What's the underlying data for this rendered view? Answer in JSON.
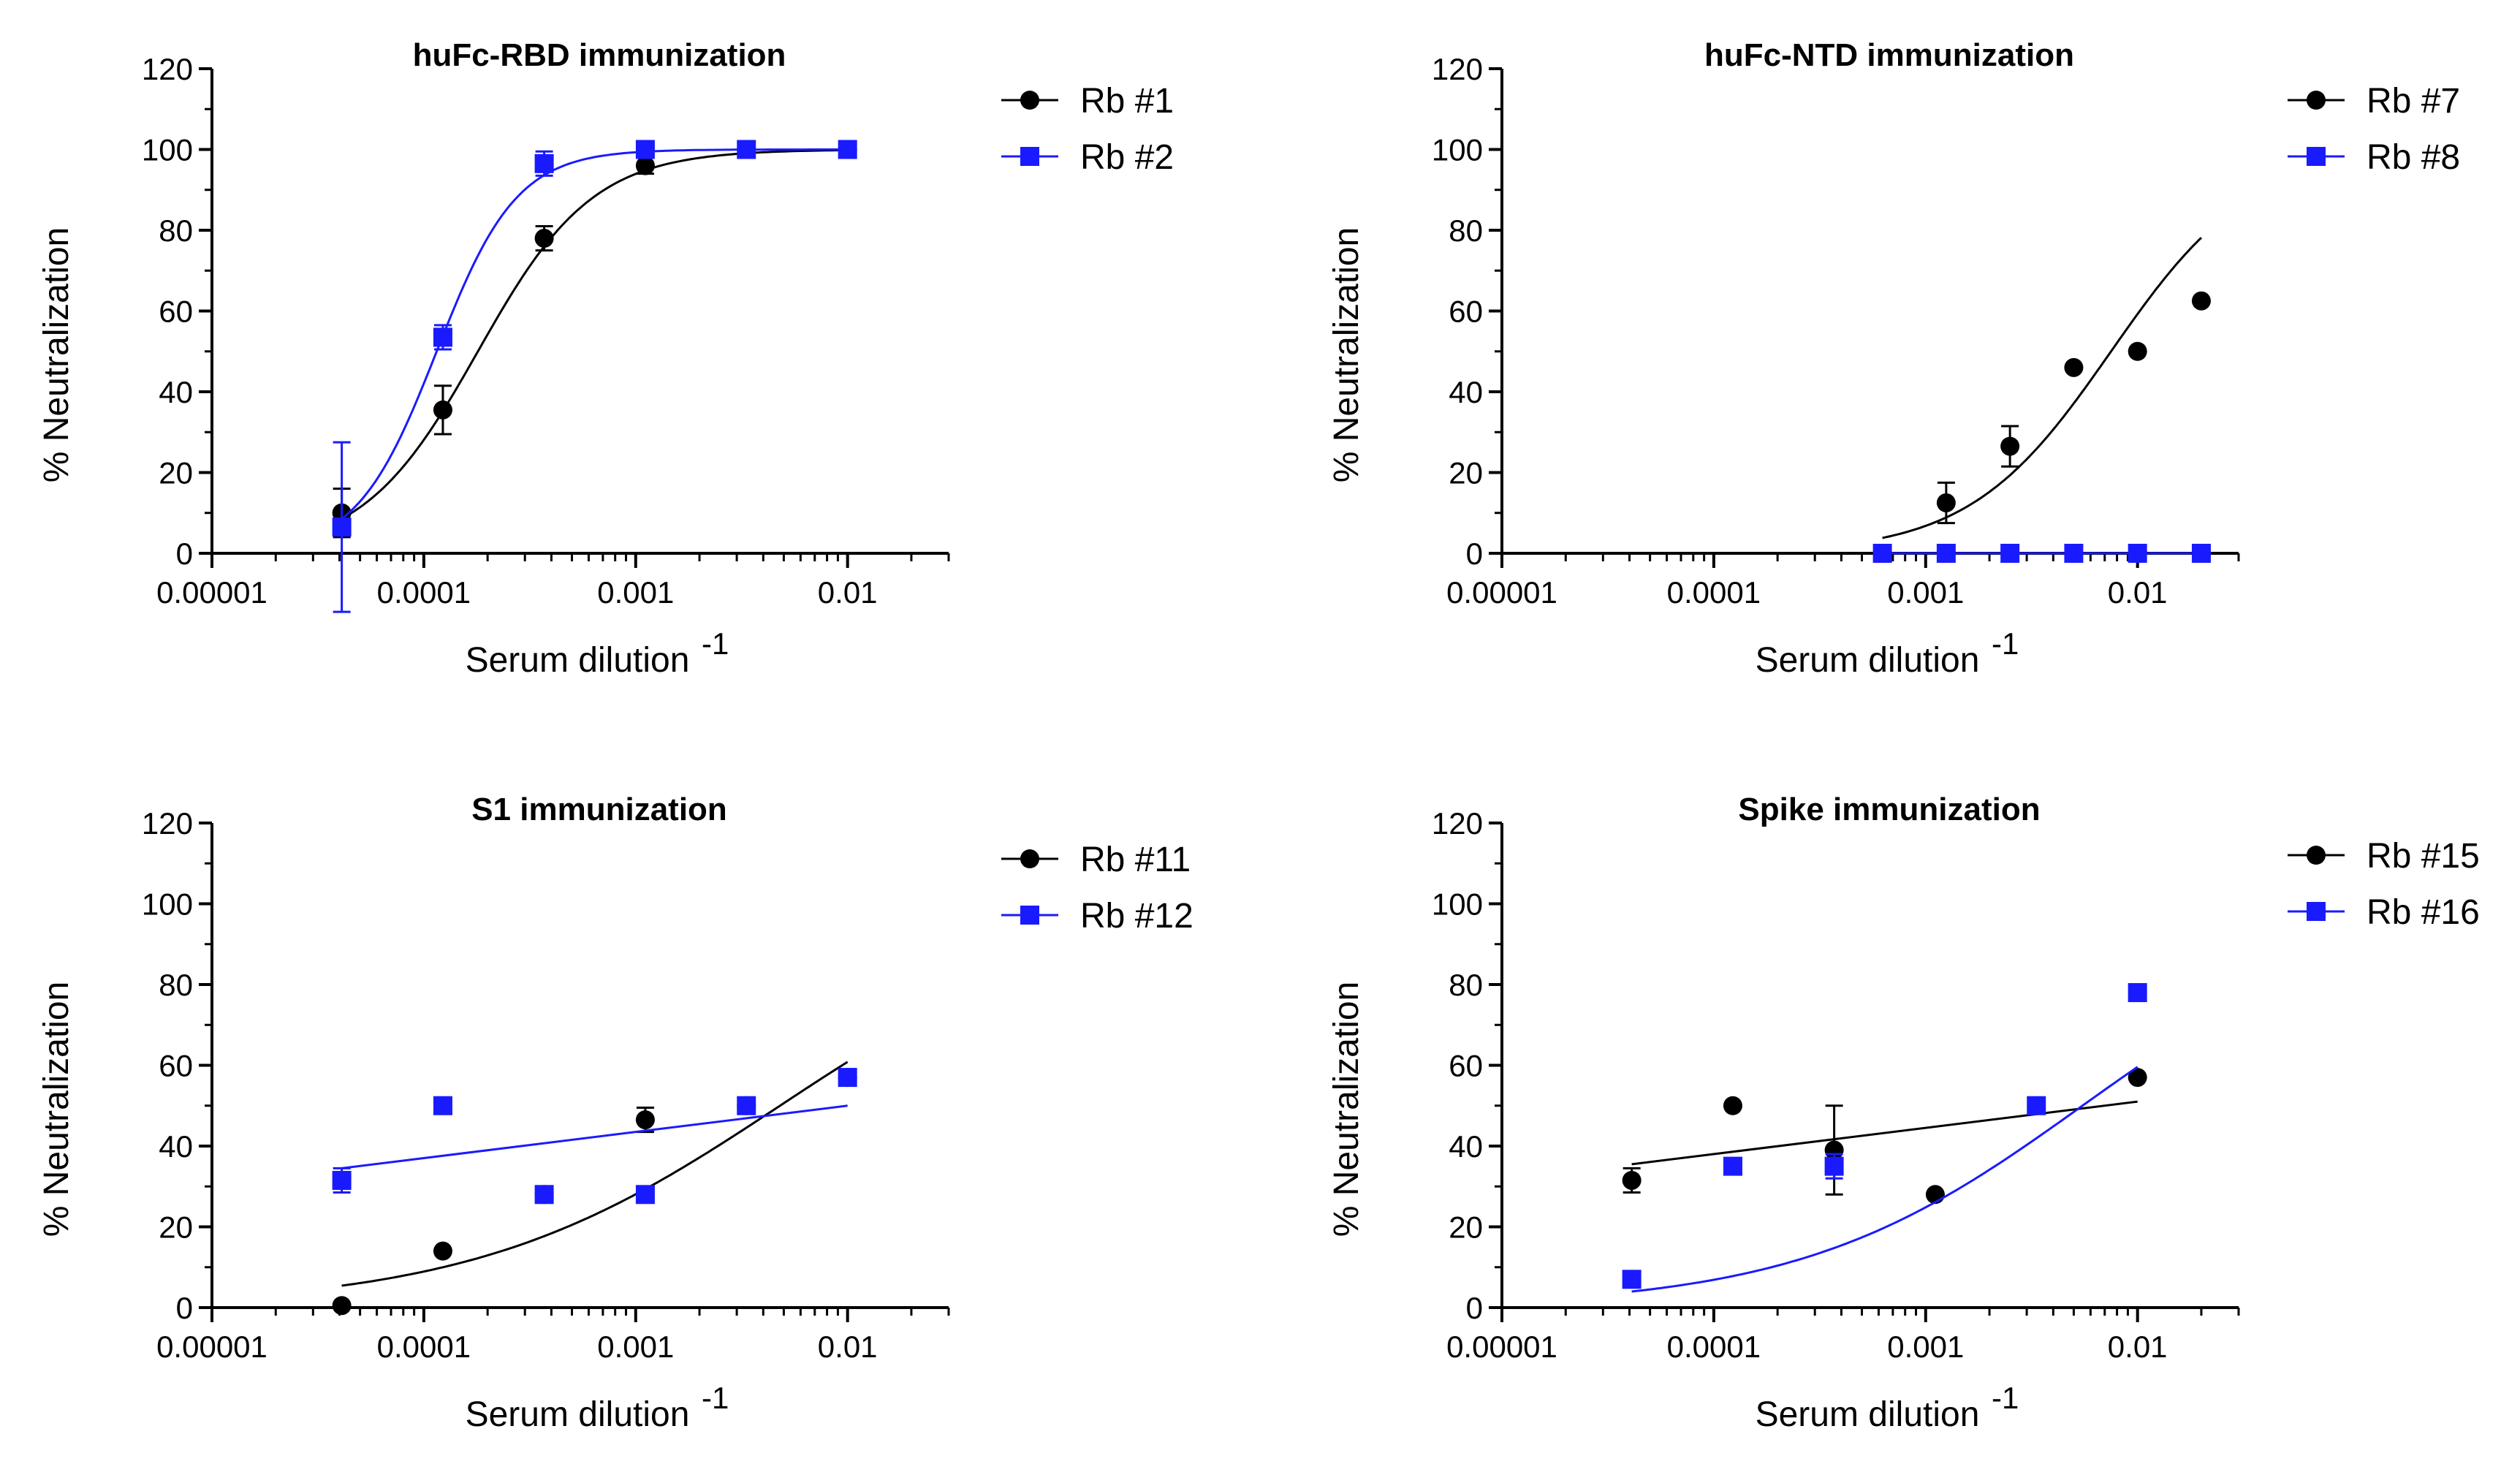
{
  "chart_data": [
    {
      "type": "scatter",
      "title": "huFc-RBD immunization",
      "xlabel": "Serum dilution",
      "xlabel_sup": "-1",
      "ylabel": "% Neutralization",
      "xscale": "log",
      "xlim": [
        1e-05,
        0.03
      ],
      "ylim": [
        0,
        120
      ],
      "x_ticks": [
        "0.00001",
        "0.0001",
        "0.001",
        "0.01"
      ],
      "y_ticks": [
        "0",
        "20",
        "40",
        "60",
        "80",
        "100",
        "120"
      ],
      "legend": "top-right",
      "series": [
        {
          "name": "Rb #1",
          "marker": "circle",
          "color": "#000000",
          "x": [
            4.1e-05,
            0.000123,
            0.00037,
            0.00111,
            0.00333,
            0.01
          ],
          "y": [
            10,
            35.5,
            78,
            96,
            100,
            100
          ],
          "err": [
            6,
            6,
            3,
            2,
            0,
            0
          ],
          "fit": {
            "model": "hill",
            "ec50": 0.00018,
            "hill": 1.6,
            "bottom": 0,
            "top": 100,
            "from": 4.1e-05,
            "to": 0.01
          }
        },
        {
          "name": "Rb #2",
          "marker": "square",
          "color": "#1a1aff",
          "x": [
            4.1e-05,
            0.000123,
            0.00037,
            0.00111,
            0.00333,
            0.01
          ],
          "y": [
            6.5,
            53.5,
            96.5,
            100,
            100,
            100
          ],
          "err": [
            21,
            3,
            3,
            0,
            0,
            0
          ],
          "fit": {
            "model": "hill",
            "ec50": 0.000115,
            "hill": 2.3,
            "bottom": 0,
            "top": 100,
            "from": 4.1e-05,
            "to": 0.01
          }
        }
      ]
    },
    {
      "type": "scatter",
      "title": "huFc-NTD immunization",
      "xlabel": "Serum dilution",
      "xlabel_sup": "-1",
      "ylabel": "% Neutralization",
      "xscale": "log",
      "xlim": [
        1e-05,
        0.03
      ],
      "ylim": [
        0,
        120
      ],
      "x_ticks": [
        "0.00001",
        "0.0001",
        "0.001",
        "0.01"
      ],
      "y_ticks": [
        "0",
        "20",
        "40",
        "60",
        "80",
        "100",
        "120"
      ],
      "legend": "top-right",
      "series": [
        {
          "name": "Rb #7",
          "marker": "circle",
          "color": "#000000",
          "x": [
            0.00125,
            0.0025,
            0.005,
            0.01,
            0.02
          ],
          "y": [
            12.5,
            26.5,
            46,
            50,
            62.5
          ],
          "err": [
            5,
            5,
            0,
            0,
            0
          ],
          "fit": {
            "model": "hill",
            "ec50": 0.0075,
            "hill": 1.3,
            "bottom": 0,
            "top": 100,
            "from": 0.000625,
            "to": 0.02
          }
        },
        {
          "name": "Rb #8",
          "marker": "square",
          "color": "#1a1aff",
          "x": [
            0.000625,
            0.00125,
            0.0025,
            0.005,
            0.01,
            0.02
          ],
          "y": [
            0,
            0,
            0,
            0,
            0,
            0
          ],
          "err": [
            0,
            0,
            0,
            0,
            0,
            0
          ],
          "fit": {
            "model": "line",
            "from": 0.000625,
            "to": 0.02,
            "y0": 0,
            "y1": 0
          }
        }
      ]
    },
    {
      "type": "scatter",
      "title": "S1 immunization",
      "xlabel": "Serum dilution",
      "xlabel_sup": "-1",
      "ylabel": "% Neutralization",
      "xscale": "log",
      "xlim": [
        1e-05,
        0.03
      ],
      "ylim": [
        0,
        120
      ],
      "x_ticks": [
        "0.00001",
        "0.0001",
        "0.001",
        "0.01"
      ],
      "y_ticks": [
        "0",
        "20",
        "40",
        "60",
        "80",
        "100",
        "120"
      ],
      "legend": "top-right",
      "series": [
        {
          "name": "Rb #11",
          "marker": "circle",
          "color": "#000000",
          "x": [
            4.1e-05,
            0.000123,
            0.00037,
            0.00111,
            0.00333,
            0.01
          ],
          "y": [
            0.5,
            14,
            28,
            46.5,
            50,
            57
          ],
          "err": [
            0,
            0,
            0,
            3,
            0,
            0
          ],
          "fit": {
            "model": "hill",
            "ec50": 0.0048,
            "hill": 0.6,
            "bottom": 0,
            "top": 100,
            "from": 4.1e-05,
            "to": 0.01
          }
        },
        {
          "name": "Rb #12",
          "marker": "square",
          "color": "#1a1aff",
          "x": [
            4.1e-05,
            0.000123,
            0.00037,
            0.00111,
            0.00333,
            0.01
          ],
          "y": [
            31.5,
            50,
            28,
            28,
            50,
            57
          ],
          "err": [
            3,
            0,
            0,
            0,
            0,
            0
          ],
          "fit": {
            "model": "line",
            "from": 4.1e-05,
            "to": 0.01,
            "y0": 34.5,
            "y1": 50
          }
        }
      ]
    },
    {
      "type": "scatter",
      "title": "Spike immunization",
      "xlabel": "Serum dilution",
      "xlabel_sup": "-1",
      "ylabel": "% Neutralization",
      "xscale": "log",
      "xlim": [
        1e-05,
        0.03
      ],
      "ylim": [
        0,
        120
      ],
      "x_ticks": [
        "0.00001",
        "0.0001",
        "0.001",
        "0.01"
      ],
      "y_ticks": [
        "0",
        "20",
        "40",
        "60",
        "80",
        "100",
        "120"
      ],
      "legend": "top-right",
      "series": [
        {
          "name": "Rb #15",
          "marker": "circle",
          "color": "#000000",
          "x": [
            4.1e-05,
            0.000123,
            0.00037,
            0.00111,
            0.01
          ],
          "y": [
            31.5,
            50,
            39,
            28,
            57
          ],
          "err": [
            3,
            0,
            11,
            0,
            0
          ],
          "fit": {
            "model": "line",
            "from": 4.1e-05,
            "to": 0.01,
            "y0": 35.5,
            "y1": 51
          }
        },
        {
          "name": "Rb #16",
          "marker": "square",
          "color": "#1a1aff",
          "x": [
            4.1e-05,
            0.000123,
            0.00037,
            0.00333,
            0.01
          ],
          "y": [
            7,
            35,
            35,
            50,
            78
          ],
          "err": [
            0,
            0,
            3,
            0,
            0
          ],
          "fit": {
            "model": "hill",
            "ec50": 0.0055,
            "hill": 0.65,
            "bottom": 0,
            "top": 100,
            "from": 4.1e-05,
            "to": 0.01
          }
        }
      ]
    }
  ]
}
